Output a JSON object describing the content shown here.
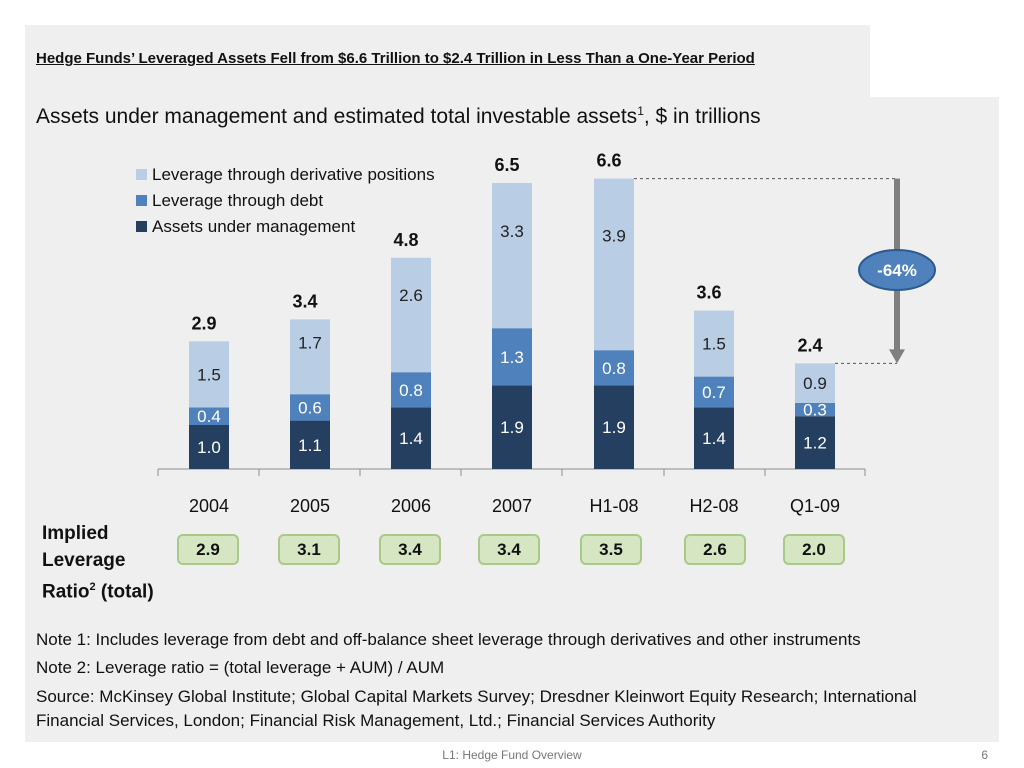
{
  "headline": "Hedge Funds’ Leveraged Assets Fell from $6.6 Trillion to $2.4 Trillion in Less Than a One-Year Period",
  "subtitle": {
    "text": "Assets under management and estimated total investable assets",
    "sup": "1",
    "suffix": ", $ in trillions"
  },
  "chart_data": {
    "type": "bar",
    "stacked": true,
    "categories": [
      "2004",
      "2005",
      "2006",
      "2007",
      "H1-08",
      "H2-08",
      "Q1-09"
    ],
    "series": [
      {
        "name": "Assets under management",
        "values": [
          1.0,
          1.1,
          1.4,
          1.9,
          1.9,
          1.4,
          1.2
        ],
        "labels": [
          "1.0",
          "1.1",
          "1.4",
          "1.9",
          "1.9",
          "1.4",
          "1.2"
        ],
        "color": "#243f60"
      },
      {
        "name": "Leverage through debt",
        "values": [
          0.4,
          0.6,
          0.8,
          1.3,
          0.8,
          0.7,
          0.3
        ],
        "labels": [
          "0.4",
          "0.6",
          "0.8",
          "1.3",
          "0.8",
          "0.7",
          "0.3"
        ],
        "color": "#4f81bd"
      },
      {
        "name": "Leverage through derivative positions",
        "values": [
          1.5,
          1.7,
          2.6,
          3.3,
          3.9,
          1.5,
          0.9
        ],
        "labels": [
          "1.5",
          "1.7",
          "2.6",
          "3.3",
          "3.9",
          "1.5",
          "0.9"
        ],
        "color": "#b9cde5"
      }
    ],
    "totals": [
      "2.9",
      "3.4",
      "4.8",
      "6.5",
      "6.6",
      "3.6",
      "2.4"
    ],
    "legend_position": "top-left",
    "annotation": "-64%",
    "xlabel": "",
    "ylabel": ""
  },
  "implied_leverage": {
    "label_lines": [
      "Implied",
      "Leverage"
    ],
    "label_last": "Ratio",
    "label_sup": "2",
    "label_suffix": " (total)",
    "values": [
      "2.9",
      "3.1",
      "3.4",
      "3.4",
      "3.5",
      "2.6",
      "2.0"
    ]
  },
  "notes": [
    "Note 1: Includes leverage from debt and off-balance sheet leverage through derivatives and other instruments",
    "Note 2: Leverage ratio = (total leverage + AUM) / AUM",
    "Source: McKinsey Global Institute; Global Capital Markets Survey; Dresdner Kleinwort Equity Research; International Financial Services, London; Financial Risk Management, Ltd.; Financial Services Authority"
  ],
  "footer": {
    "title": "L1: Hedge Fund Overview",
    "page": "6"
  }
}
